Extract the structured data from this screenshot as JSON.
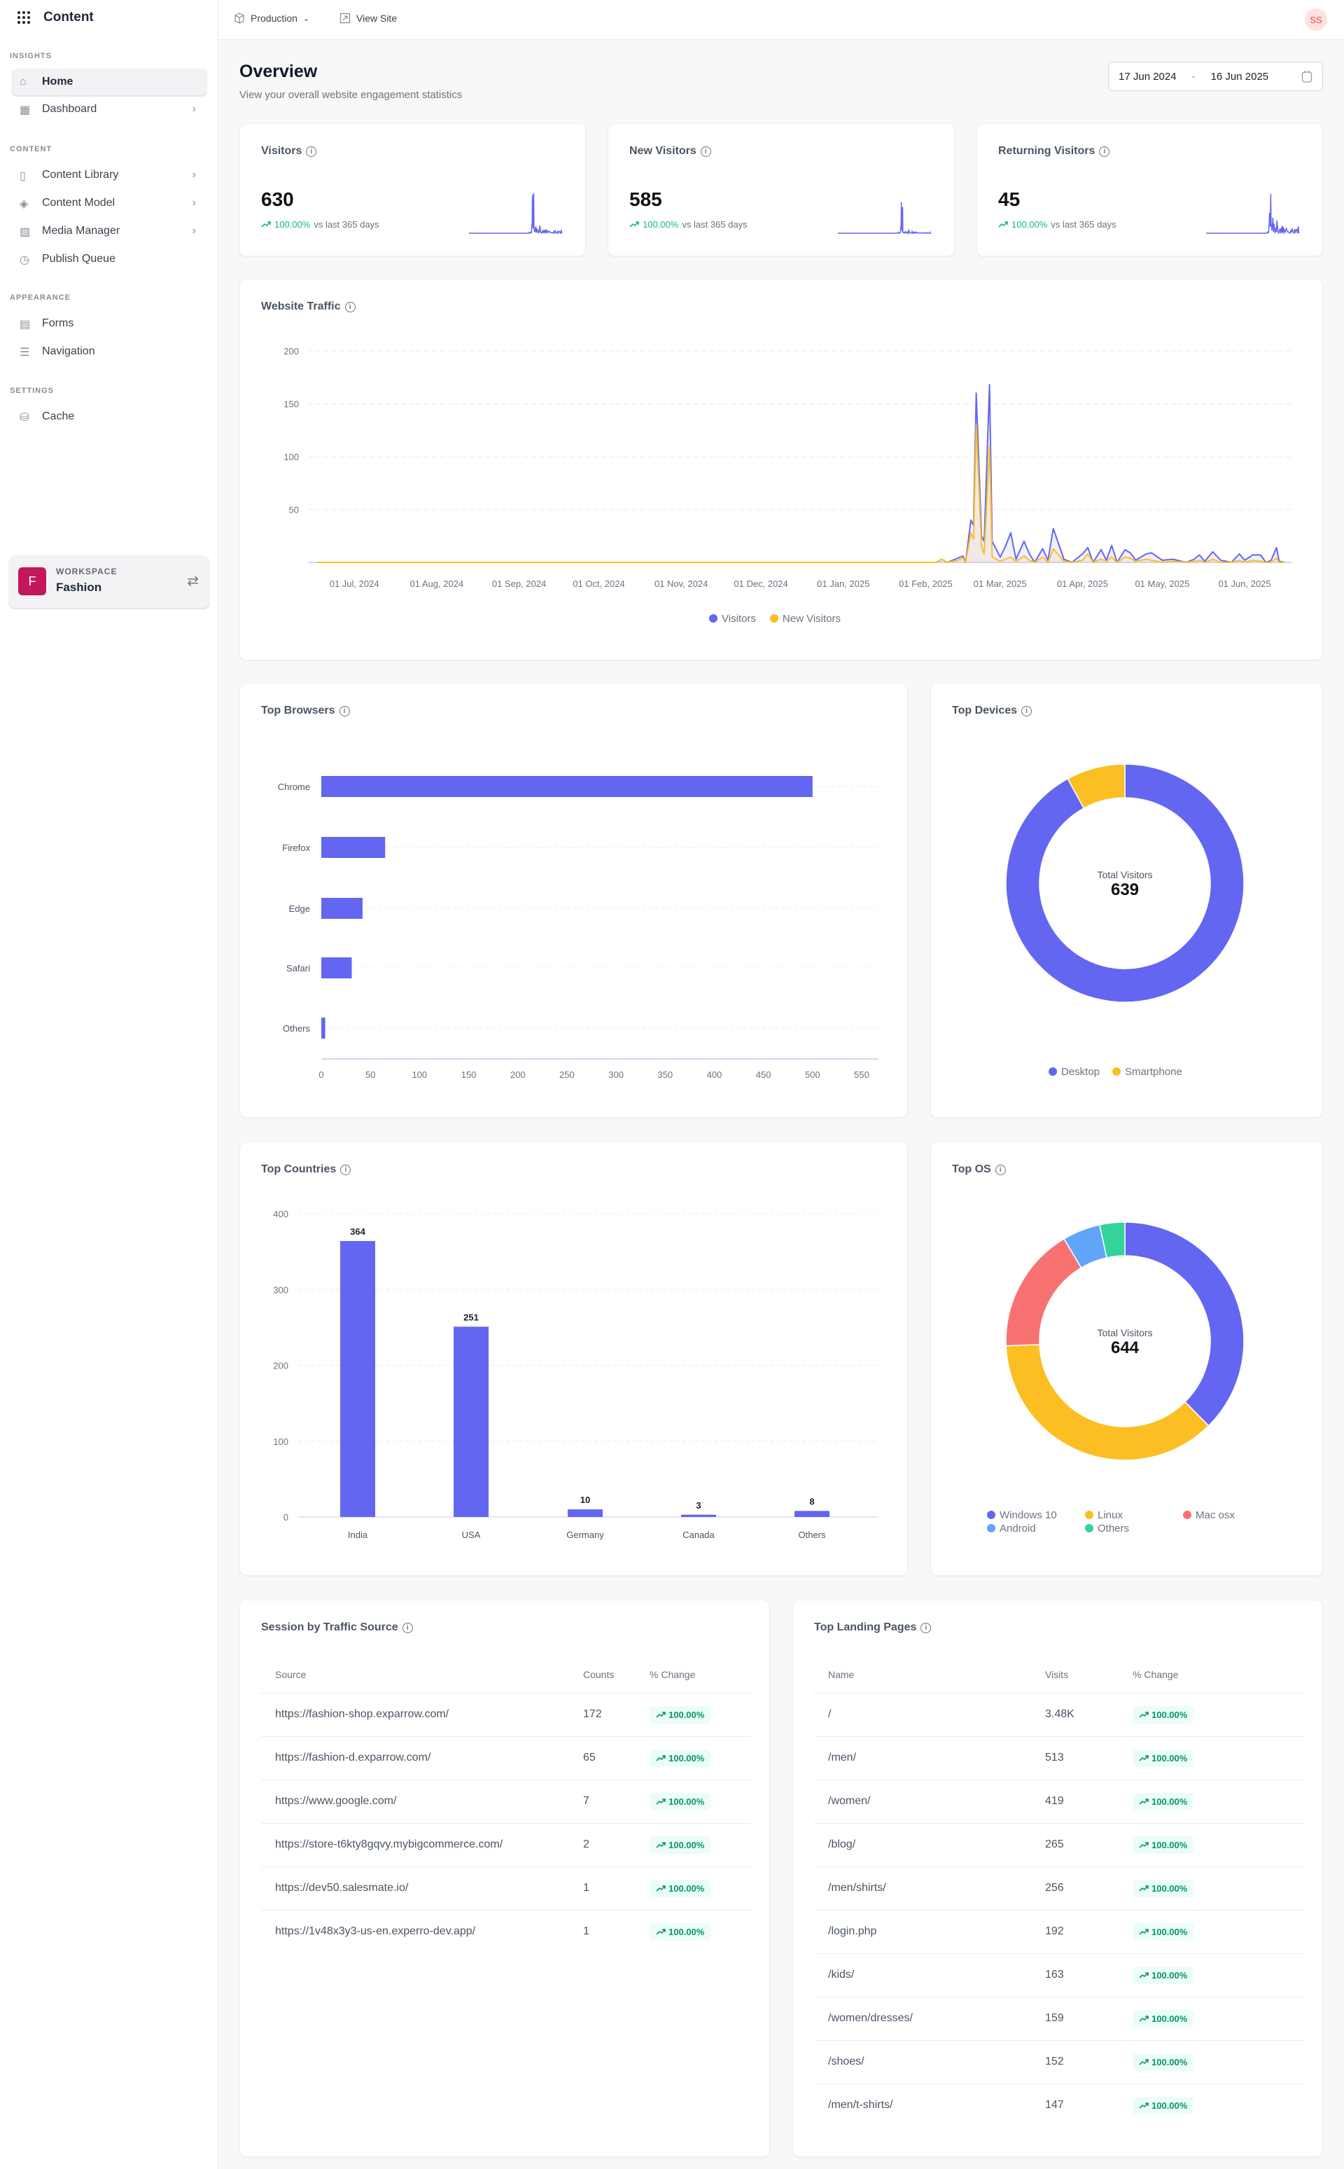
{
  "sidebar": {
    "app_title": "Content",
    "sections": {
      "insights": "INSIGHTS",
      "content": "CONTENT",
      "appearance": "APPEARANCE",
      "settings": "SETTINGS"
    },
    "items": [
      {
        "label": "Home",
        "icon": "home-icon",
        "active": true
      },
      {
        "label": "Dashboard",
        "icon": "dashboard-icon",
        "chevron": true
      },
      {
        "label": "Content Library",
        "icon": "book-icon",
        "chevron": true
      },
      {
        "label": "Content Model",
        "icon": "layers-icon",
        "chevron": true
      },
      {
        "label": "Media Manager",
        "icon": "image-icon",
        "chevron": true
      },
      {
        "label": "Publish Queue",
        "icon": "clock-icon"
      },
      {
        "label": "Forms",
        "icon": "form-icon"
      },
      {
        "label": "Navigation",
        "icon": "navigation-icon"
      },
      {
        "label": "Cache",
        "icon": "database-icon"
      }
    ],
    "workspace": {
      "label": "WORKSPACE",
      "name": "Fashion",
      "initial": "F"
    }
  },
  "topbar": {
    "environment": "Production",
    "view_site": "View Site",
    "avatar": "SS"
  },
  "header": {
    "title": "Overview",
    "subtitle": "View your overall website engagement statistics",
    "date_from": "17 Jun 2024",
    "date_sep": "-",
    "date_to": "16 Jun 2025"
  },
  "kpis": [
    {
      "title": "Visitors",
      "value": "630",
      "change": "100.00%",
      "suffix": "vs last 365 days"
    },
    {
      "title": "New Visitors",
      "value": "585",
      "change": "100.00%",
      "suffix": "vs last 365 days"
    },
    {
      "title": "Returning Visitors",
      "value": "45",
      "change": "100.00%",
      "suffix": "vs last 365 days"
    }
  ],
  "colors": {
    "accent": "#6366f1",
    "yellow": "#fbbf24",
    "red": "#f87171",
    "blue": "#60a5fa",
    "green": "#34d399",
    "positive": "#10b981"
  },
  "chart_data": [
    {
      "title": "Website Traffic",
      "type": "area",
      "x_range": [
        "2024-06-17",
        "2025-06-16"
      ],
      "ylim": [
        0,
        200
      ],
      "yticks": [
        50,
        100,
        150,
        200
      ],
      "grid": true,
      "legend": "bottom",
      "xticks": [
        "01 Jul, 2024",
        "01 Aug, 2024",
        "01 Sep, 2024",
        "01 Oct, 2024",
        "01 Nov, 2024",
        "01 Dec, 2024",
        "01 Jan, 2025",
        "01 Feb, 2025",
        "01 Mar, 2025",
        "01 Apr, 2025",
        "01 May, 2025",
        "01 Jun, 2025"
      ],
      "xtick_dates": [
        "2024-07-01",
        "2024-08-01",
        "2024-09-01",
        "2024-10-01",
        "2024-11-01",
        "2024-12-01",
        "2025-01-01",
        "2025-02-01",
        "2025-03-01",
        "2025-04-01",
        "2025-05-01",
        "2025-06-01"
      ],
      "series_names": [
        "Visitors",
        "New Visitors"
      ],
      "points": [
        [
          "2024-06-17",
          0,
          0
        ],
        [
          "2025-02-05",
          0,
          0
        ],
        [
          "2025-02-07",
          3,
          3
        ],
        [
          "2025-02-09",
          0,
          0
        ],
        [
          "2025-02-13",
          4,
          2
        ],
        [
          "2025-02-15",
          6,
          4
        ],
        [
          "2025-02-16",
          0,
          0
        ],
        [
          "2025-02-18",
          40,
          28
        ],
        [
          "2025-02-19",
          35,
          22
        ],
        [
          "2025-02-20",
          160,
          130
        ],
        [
          "2025-02-22",
          25,
          15
        ],
        [
          "2025-02-23",
          20,
          8
        ],
        [
          "2025-02-25",
          168,
          110
        ],
        [
          "2025-02-26",
          20,
          5
        ],
        [
          "2025-03-01",
          5,
          1
        ],
        [
          "2025-03-03",
          15,
          3
        ],
        [
          "2025-03-05",
          28,
          5
        ],
        [
          "2025-03-07",
          3,
          1
        ],
        [
          "2025-03-10",
          20,
          6
        ],
        [
          "2025-03-12",
          8,
          2
        ],
        [
          "2025-03-14",
          0,
          0
        ],
        [
          "2025-03-17",
          13,
          5
        ],
        [
          "2025-03-19",
          2,
          0
        ],
        [
          "2025-03-21",
          32,
          13
        ],
        [
          "2025-03-25",
          3,
          1
        ],
        [
          "2025-03-28",
          0,
          0
        ],
        [
          "2025-04-01",
          8,
          2
        ],
        [
          "2025-04-03",
          14,
          8
        ],
        [
          "2025-04-05",
          0,
          0
        ],
        [
          "2025-04-08",
          12,
          3
        ],
        [
          "2025-04-10",
          2,
          1
        ],
        [
          "2025-04-12",
          16,
          5
        ],
        [
          "2025-04-14",
          0,
          0
        ],
        [
          "2025-04-17",
          12,
          5
        ],
        [
          "2025-04-19",
          9,
          4
        ],
        [
          "2025-04-21",
          2,
          1
        ],
        [
          "2025-04-25",
          8,
          3
        ],
        [
          "2025-04-27",
          9,
          2
        ],
        [
          "2025-05-01",
          2,
          0
        ],
        [
          "2025-05-05",
          3,
          1
        ],
        [
          "2025-05-10",
          0,
          0
        ],
        [
          "2025-05-13",
          3,
          1
        ],
        [
          "2025-05-15",
          7,
          2
        ],
        [
          "2025-05-17",
          1,
          0
        ],
        [
          "2025-05-20",
          10,
          3
        ],
        [
          "2025-05-23",
          2,
          0
        ],
        [
          "2025-05-27",
          0,
          0
        ],
        [
          "2025-05-30",
          8,
          2
        ],
        [
          "2025-06-01",
          2,
          0
        ],
        [
          "2025-06-04",
          7,
          2
        ],
        [
          "2025-06-07",
          7,
          1
        ],
        [
          "2025-06-09",
          0,
          0
        ],
        [
          "2025-06-11",
          2,
          0
        ],
        [
          "2025-06-13",
          14,
          4
        ],
        [
          "2025-06-14",
          1,
          0
        ],
        [
          "2025-06-16",
          0,
          0
        ]
      ]
    },
    {
      "title": "Top Browsers",
      "type": "bar",
      "orientation": "horizontal",
      "categories": [
        "Chrome",
        "Firefox",
        "Edge",
        "Safari",
        "Others"
      ],
      "values": [
        500,
        65,
        42,
        31,
        4
      ],
      "xlim": [
        0,
        550
      ],
      "xticks": [
        0,
        50,
        100,
        150,
        200,
        250,
        300,
        350,
        400,
        450,
        500,
        550
      ]
    },
    {
      "title": "Top Devices",
      "type": "pie",
      "donut": true,
      "center_label": "Total Visitors",
      "total": "639",
      "categories": [
        "Desktop",
        "Smartphone"
      ],
      "values": [
        588,
        51
      ],
      "colors": [
        "#6366f1",
        "#fbbf24"
      ],
      "legend": "bottom"
    },
    {
      "title": "Top Countries",
      "type": "bar",
      "categories": [
        "India",
        "USA",
        "Germany",
        "Canada",
        "Others"
      ],
      "values": [
        364,
        251,
        10,
        3,
        8
      ],
      "data_labels": [
        "364",
        "251",
        "10",
        "3",
        "8"
      ],
      "ylim": [
        0,
        400
      ],
      "yticks": [
        0,
        100,
        200,
        300,
        400
      ]
    },
    {
      "title": "Top OS",
      "type": "pie",
      "donut": true,
      "center_label": "Total Visitors",
      "total": "644",
      "categories": [
        "Windows 10",
        "Linux",
        "Mac osx",
        "Android",
        "Others"
      ],
      "values": [
        242,
        237,
        110,
        33,
        22
      ],
      "colors": [
        "#6366f1",
        "#fbbf24",
        "#f87171",
        "#60a5fa",
        "#34d399"
      ],
      "legend": "bottom"
    }
  ],
  "traffic_sources": {
    "title": "Session by Traffic Source",
    "columns": [
      "Source",
      "Counts",
      "% Change"
    ],
    "rows": [
      [
        "https://fashion-shop.exparrow.com/",
        "172",
        "100.00%"
      ],
      [
        "https://fashion-d.exparrow.com/",
        "65",
        "100.00%"
      ],
      [
        "https://www.google.com/",
        "7",
        "100.00%"
      ],
      [
        "https://store-t6kty8gqvy.mybigcommerce.com/",
        "2",
        "100.00%"
      ],
      [
        "https://dev50.salesmate.io/",
        "1",
        "100.00%"
      ],
      [
        "https://1v48x3y3-us-en.experro-dev.app/",
        "1",
        "100.00%"
      ]
    ]
  },
  "landing_pages": {
    "title": "Top Landing Pages",
    "columns": [
      "Name",
      "Visits",
      "% Change"
    ],
    "rows": [
      [
        "/",
        "3.48K",
        "100.00%"
      ],
      [
        "/men/",
        "513",
        "100.00%"
      ],
      [
        "/women/",
        "419",
        "100.00%"
      ],
      [
        "/blog/",
        "265",
        "100.00%"
      ],
      [
        "/men/shirts/",
        "256",
        "100.00%"
      ],
      [
        "/login.php",
        "192",
        "100.00%"
      ],
      [
        "/kids/",
        "163",
        "100.00%"
      ],
      [
        "/women/dresses/",
        "159",
        "100.00%"
      ],
      [
        "/shoes/",
        "152",
        "100.00%"
      ],
      [
        "/men/t-shirts/",
        "147",
        "100.00%"
      ]
    ]
  }
}
